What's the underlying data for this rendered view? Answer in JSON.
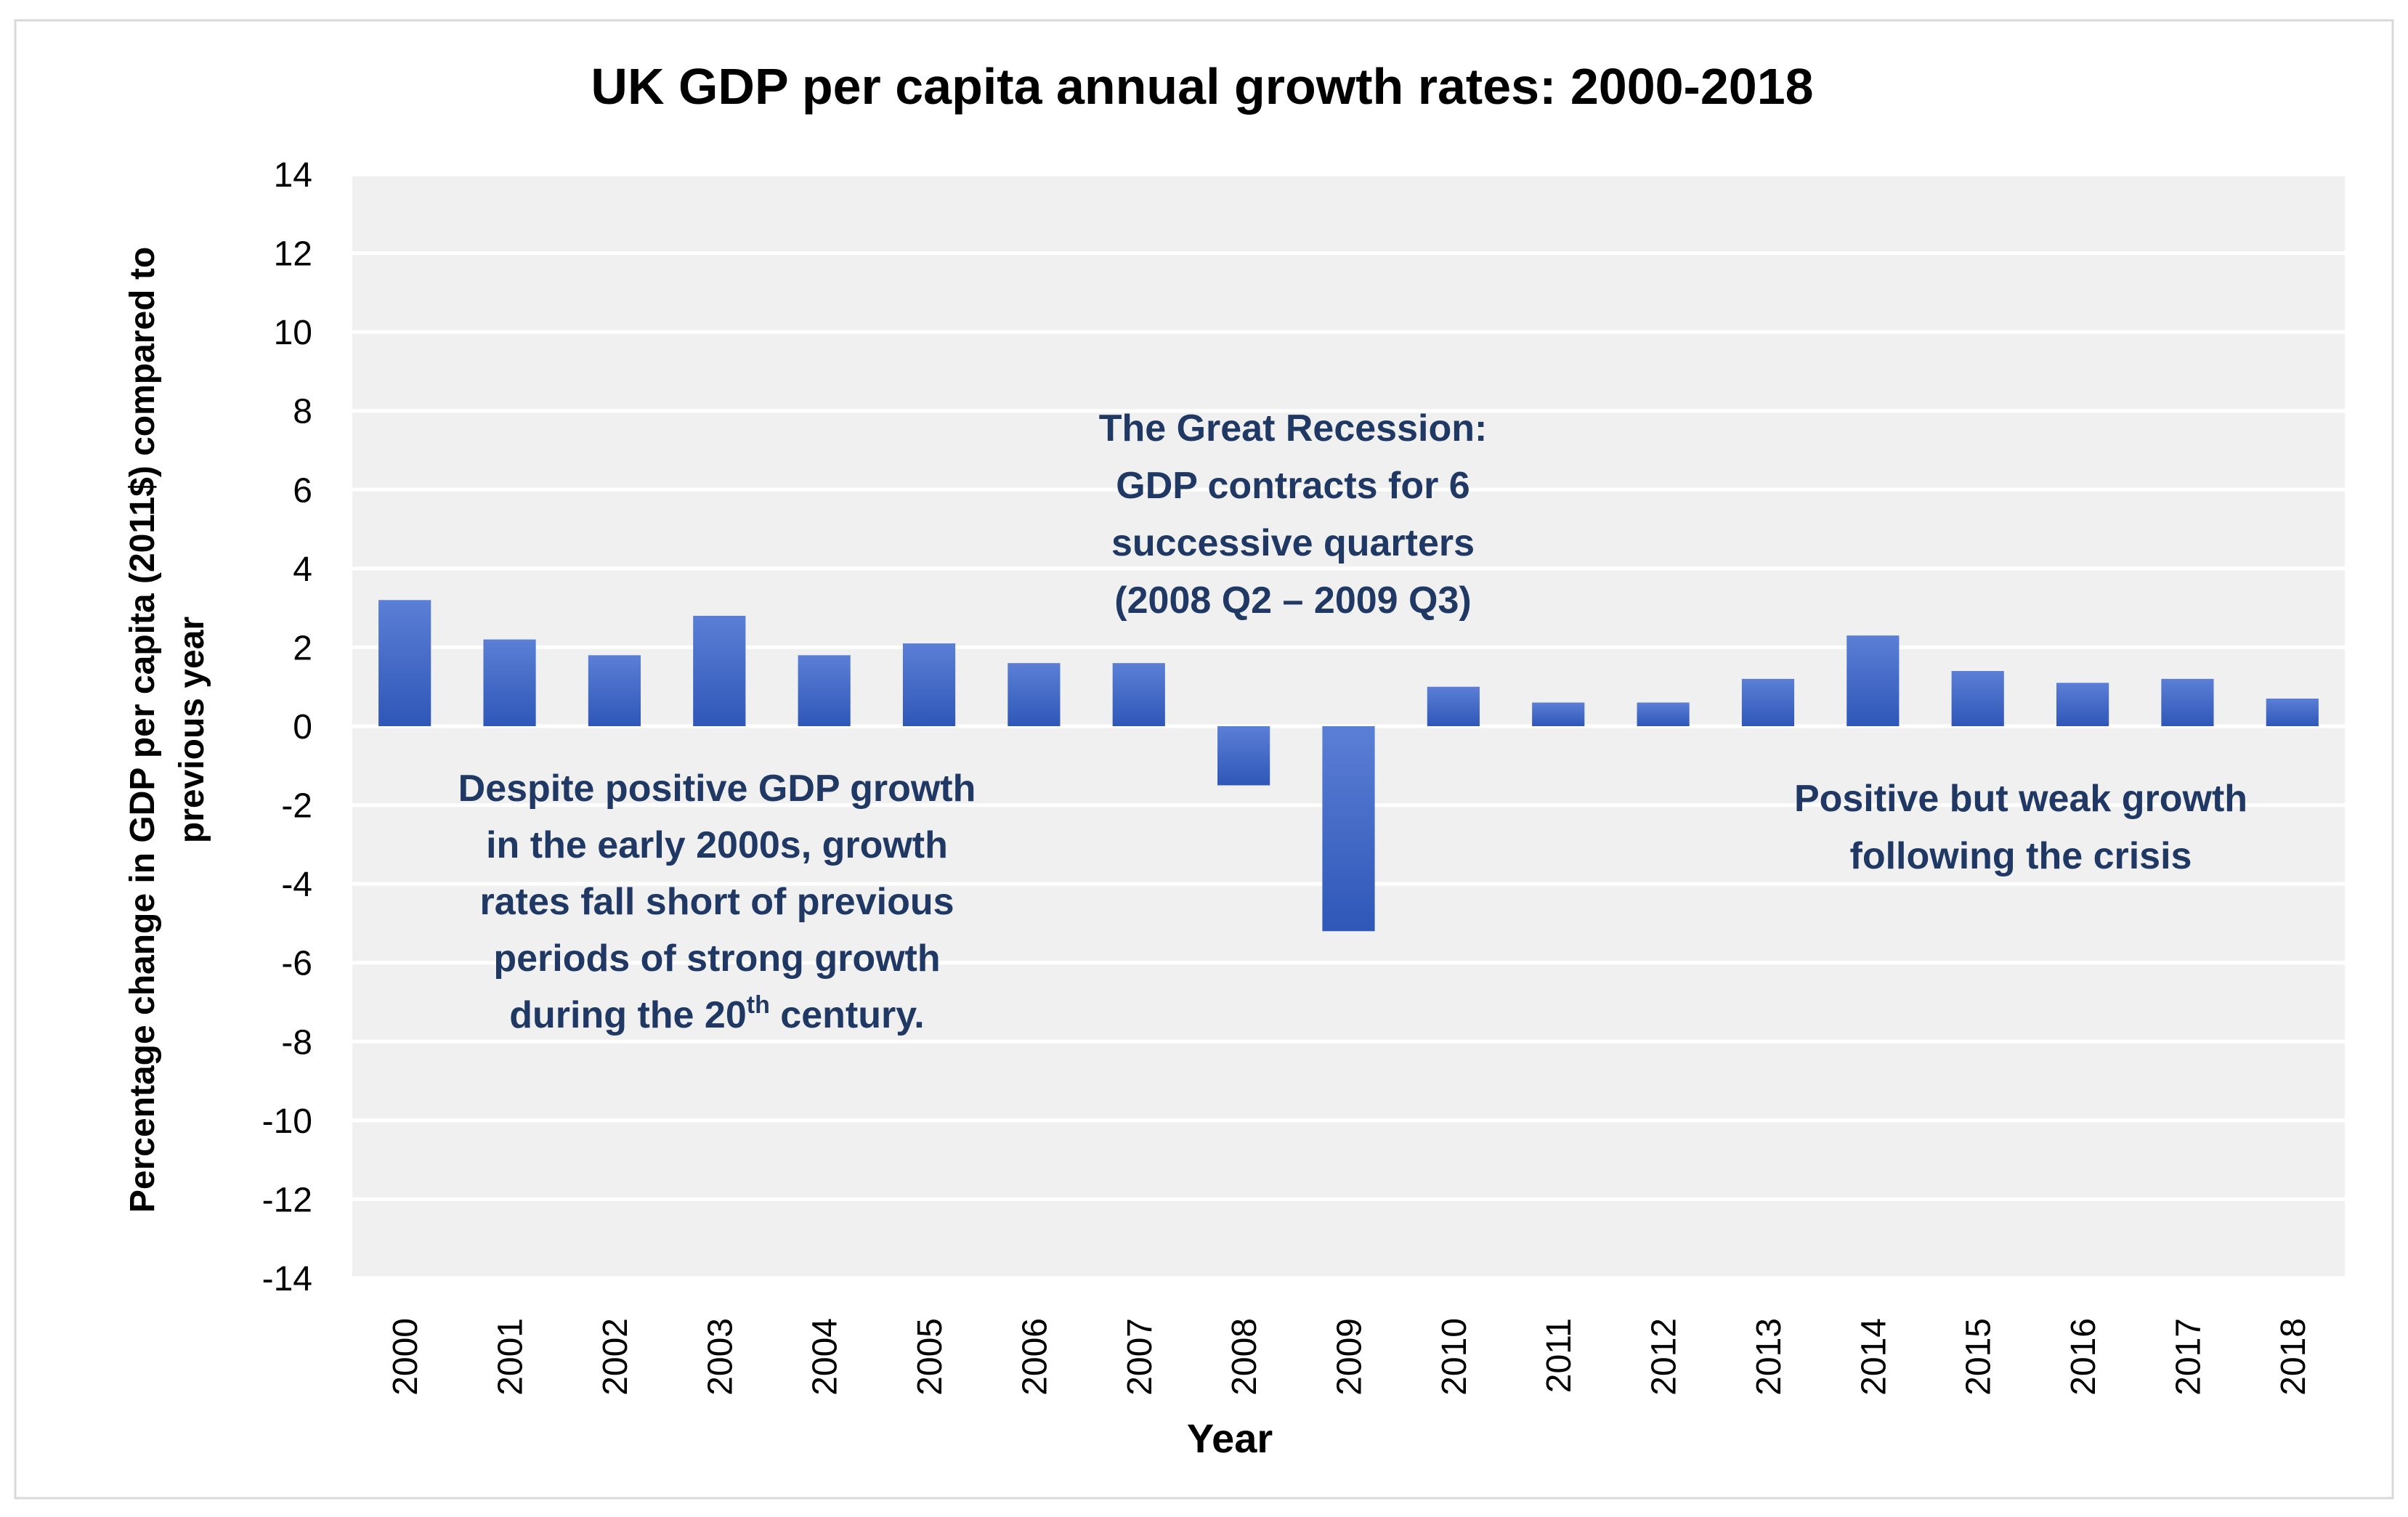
{
  "chart_data": {
    "type": "bar",
    "title": "UK GDP per capita annual growth rates: 2000-2018",
    "xlabel": "Year",
    "ylabel_lines": [
      "Percentage change in GDP per capita (2011$) compared to",
      "previous year"
    ],
    "ylim": [
      -14,
      14
    ],
    "ytick_step": 2,
    "yticks": [
      "14",
      "12",
      "10",
      "8",
      "6",
      "4",
      "2",
      "0",
      "-2",
      "-4",
      "-6",
      "-8",
      "-10",
      "-12",
      "-14"
    ],
    "grid": true,
    "categories": [
      "2000",
      "2001",
      "2002",
      "2003",
      "2004",
      "2005",
      "2006",
      "2007",
      "2008",
      "2009",
      "2010",
      "2011",
      "2012",
      "2013",
      "2014",
      "2015",
      "2016",
      "2017",
      "2018"
    ],
    "series": [
      {
        "name": "UK GDP per capita annual growth rate",
        "values": [
          3.2,
          2.2,
          1.8,
          2.8,
          1.8,
          2.1,
          1.6,
          1.6,
          -1.5,
          -5.2,
          1.0,
          0.6,
          0.6,
          1.2,
          2.3,
          1.4,
          1.1,
          1.2,
          0.7
        ]
      }
    ],
    "colors": {
      "bar_top": "#5b7fd6",
      "bar_bottom": "#2f57b8",
      "plot_background": "#f0f0f0",
      "gridline": "#ffffff",
      "annotation_text": "#1f3864",
      "axis_text": "#000000",
      "frame": "#d9d9d9"
    },
    "annotations": [
      {
        "id": "early-2000s",
        "lines": [
          "Despite positive  GDP growth",
          "in the early 2000s, growth",
          "rates fall short of previous",
          "periods of strong growth"
        ],
        "last_line": {
          "before": "during the 20",
          "superscript": "th",
          "after": " century."
        }
      },
      {
        "id": "great-recession",
        "lines": [
          "The Great Recession:",
          "GDP contracts for 6",
          "successive quarters",
          "(2008 Q2 – 2009 Q3)"
        ]
      },
      {
        "id": "post-crisis",
        "lines": [
          "Positive but weak growth",
          "following the crisis"
        ]
      }
    ]
  }
}
